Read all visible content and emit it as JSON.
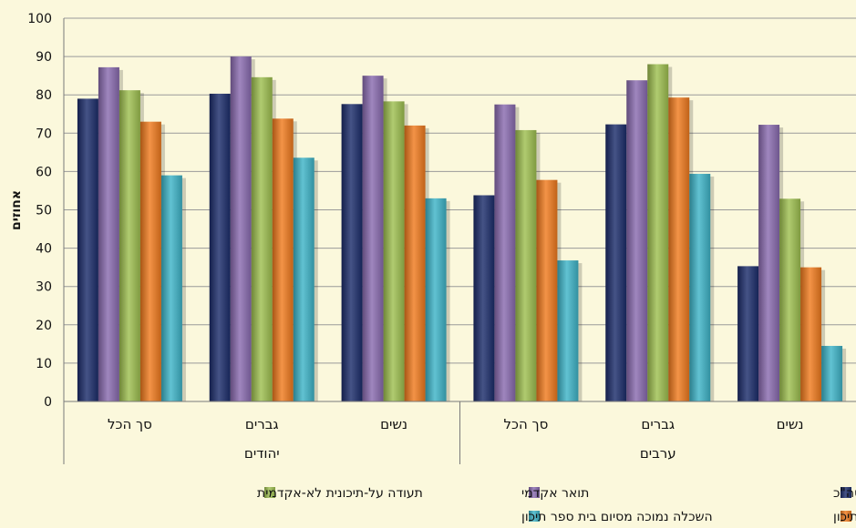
{
  "chart_data": {
    "type": "bar",
    "ylabel": "אחוזים",
    "ylim": [
      0,
      100
    ],
    "yticks": [
      0,
      10,
      20,
      30,
      40,
      50,
      60,
      70,
      80,
      90,
      100
    ],
    "grid": true,
    "legend_position": "bottom",
    "categories": [
      "סך הכל",
      "גברים",
      "נשים",
      "סך הכל",
      "גברים",
      "נשים"
    ],
    "groups": [
      {
        "label": "יהודים",
        "categories": [
          "סך הכל",
          "גברים",
          "נשים"
        ]
      },
      {
        "label": "ערבים",
        "categories": [
          "סך הכל",
          "גברים",
          "נשים"
        ]
      }
    ],
    "series": [
      {
        "name": "סה\"כ",
        "color": "#1c2d6b",
        "values": [
          79,
          80.3,
          77.6,
          53.8,
          72.3,
          35.3
        ]
      },
      {
        "name": "תואר אקדמי",
        "color": "#8a6bb0",
        "values": [
          87.2,
          90,
          85,
          77.5,
          83.8,
          72.2
        ]
      },
      {
        "name": "תעודה על-תיכונית לא-אקדמית",
        "color": "#9fc050",
        "values": [
          81.2,
          84.6,
          78.3,
          70.8,
          88,
          52.9
        ]
      },
      {
        "name": "תעודת בגרות/סיום בית ספר תיכון",
        "color": "#f07b1e",
        "values": [
          73,
          73.8,
          72,
          57.8,
          79.3,
          35
        ]
      },
      {
        "name": "השכלה נמוכה מסיום בית ספר תיכון",
        "color": "#3eb4c8",
        "values": [
          59,
          63.6,
          53,
          36.8,
          59.4,
          14.5
        ]
      }
    ]
  }
}
